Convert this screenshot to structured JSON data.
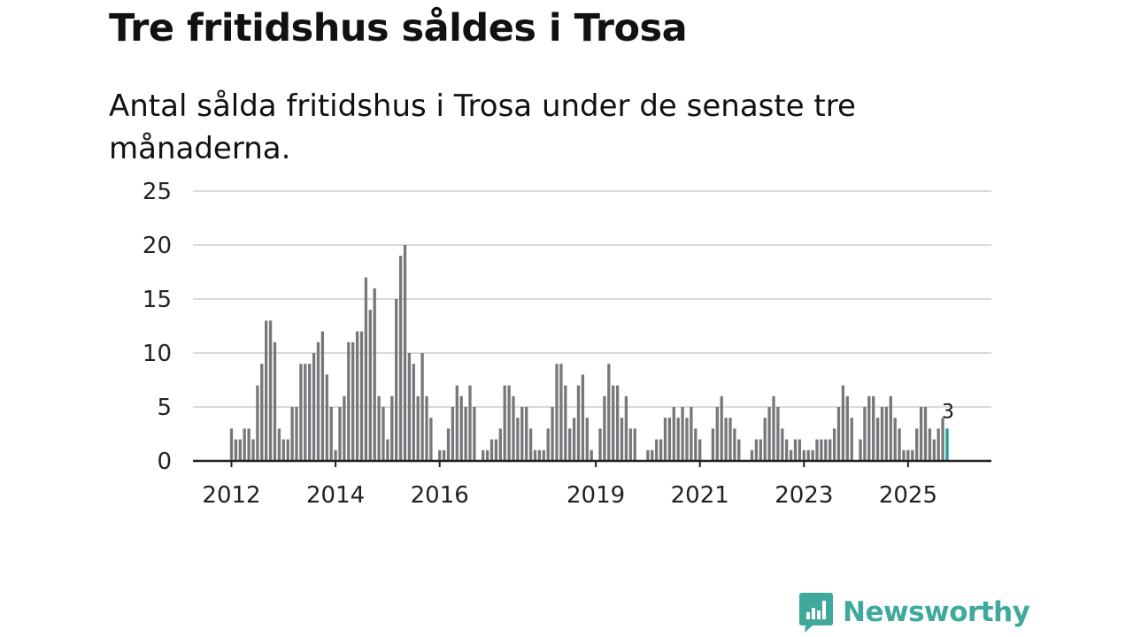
{
  "title": "Tre fritidshus såldes i Trosa",
  "subtitle": "Antal sålda fritidshus i Trosa under de senaste tre månaderna.",
  "brand": {
    "name": "Newsworthy",
    "color": "#3fa99c",
    "icon": "bar-chart-speech-bubble-icon"
  },
  "colors": {
    "bar": "#77767b",
    "highlight": "#1a9c97",
    "grid": "#d9d9d9",
    "axis": "#222222"
  },
  "chart_data": {
    "type": "bar",
    "title": "Tre fritidshus såldes i Trosa",
    "xlabel": "",
    "ylabel": "",
    "ylim": [
      0,
      25
    ],
    "yticks": [
      0,
      5,
      10,
      15,
      20,
      25
    ],
    "grid": true,
    "start": "2012-01",
    "frequency": "monthly",
    "x_tick_labels": [
      "2012",
      "2014",
      "2016",
      "2019",
      "2021",
      "2023",
      "2025"
    ],
    "x_tick_months": [
      0,
      24,
      48,
      84,
      108,
      132,
      156
    ],
    "values": [
      3,
      2,
      2,
      3,
      3,
      2,
      7,
      9,
      13,
      13,
      11,
      3,
      2,
      2,
      5,
      5,
      9,
      9,
      9,
      10,
      11,
      12,
      8,
      5,
      1,
      5,
      6,
      11,
      11,
      12,
      12,
      17,
      14,
      16,
      6,
      5,
      2,
      6,
      15,
      19,
      20,
      10,
      9,
      6,
      10,
      6,
      4,
      0,
      1,
      1,
      3,
      5,
      7,
      6,
      5,
      7,
      5,
      0,
      1,
      1,
      2,
      2,
      3,
      7,
      7,
      6,
      4,
      5,
      5,
      3,
      1,
      1,
      1,
      3,
      5,
      9,
      9,
      7,
      3,
      4,
      7,
      8,
      4,
      1,
      0,
      3,
      6,
      9,
      7,
      7,
      4,
      6,
      3,
      3,
      0,
      0,
      1,
      1,
      2,
      2,
      4,
      4,
      5,
      4,
      5,
      4,
      5,
      3,
      2,
      0,
      0,
      3,
      5,
      6,
      4,
      4,
      3,
      2,
      0,
      0,
      1,
      2,
      2,
      4,
      5,
      6,
      5,
      3,
      2,
      1,
      2,
      2,
      1,
      1,
      1,
      2,
      2,
      2,
      2,
      3,
      5,
      7,
      6,
      4,
      0,
      2,
      5,
      6,
      6,
      4,
      5,
      5,
      6,
      4,
      3,
      1,
      1,
      1,
      3,
      5,
      5,
      3,
      2,
      3,
      4,
      3
    ],
    "highlight_last": true,
    "last_value_label": "3"
  }
}
